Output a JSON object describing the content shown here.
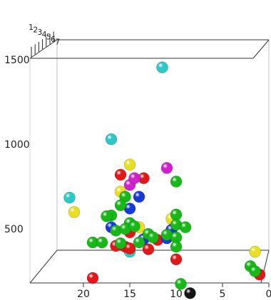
{
  "chart_data": {
    "type": "scatter",
    "projection": "3d",
    "title": "",
    "grid": false,
    "legend": "none",
    "x_axis": {
      "ticks": [
        "20",
        "15",
        "10",
        "5",
        "0"
      ],
      "range": [
        0,
        23
      ]
    },
    "y_axis": {
      "ticks": [
        "500",
        "1000",
        "1500"
      ],
      "range": [
        230,
        1550
      ]
    },
    "depth_axis": {
      "ticks": [
        "1",
        "2",
        "3",
        "4",
        "5",
        "6",
        "7"
      ]
    },
    "point_colors": {
      "cyan": "#2ec8c8",
      "yellow": "#e8e020",
      "red": "#e01818",
      "green": "#18b818",
      "blue": "#1838d8",
      "magenta": "#d020d0",
      "black": "#151515"
    },
    "points": [
      {
        "x": 11.5,
        "y": 1455,
        "color": "cyan"
      },
      {
        "x": 17.0,
        "y": 1030,
        "color": "cyan"
      },
      {
        "x": 21.5,
        "y": 685,
        "color": "cyan"
      },
      {
        "x": 15.0,
        "y": 365,
        "color": "cyan"
      },
      {
        "x": 21.0,
        "y": 600,
        "color": "yellow"
      },
      {
        "x": 15.0,
        "y": 880,
        "color": "yellow"
      },
      {
        "x": 16.0,
        "y": 720,
        "color": "yellow"
      },
      {
        "x": 14.0,
        "y": 510,
        "color": "yellow"
      },
      {
        "x": 10.5,
        "y": 560,
        "color": "yellow"
      },
      {
        "x": 1.5,
        "y": 365,
        "color": "yellow"
      },
      {
        "x": 16.0,
        "y": 820,
        "color": "red"
      },
      {
        "x": 13.5,
        "y": 800,
        "color": "red"
      },
      {
        "x": 15.0,
        "y": 480,
        "color": "red"
      },
      {
        "x": 16.5,
        "y": 400,
        "color": "red"
      },
      {
        "x": 15.5,
        "y": 395,
        "color": "red"
      },
      {
        "x": 13.0,
        "y": 380,
        "color": "red"
      },
      {
        "x": 15.0,
        "y": 385,
        "color": "red"
      },
      {
        "x": 12.0,
        "y": 435,
        "color": "red"
      },
      {
        "x": 10.0,
        "y": 320,
        "color": "red"
      },
      {
        "x": 19.0,
        "y": 210,
        "color": "red"
      },
      {
        "x": 1.0,
        "y": 230,
        "color": "red"
      },
      {
        "x": 11.0,
        "y": 860,
        "color": "magenta"
      },
      {
        "x": 15.0,
        "y": 760,
        "color": "magenta"
      },
      {
        "x": 14.5,
        "y": 800,
        "color": "magenta"
      },
      {
        "x": 14.0,
        "y": 690,
        "color": "blue"
      },
      {
        "x": 15.0,
        "y": 620,
        "color": "blue"
      },
      {
        "x": 17.0,
        "y": 510,
        "color": "blue"
      },
      {
        "x": 13.5,
        "y": 440,
        "color": "blue"
      },
      {
        "x": 10.5,
        "y": 495,
        "color": "blue"
      },
      {
        "x": 11.0,
        "y": 445,
        "color": "blue"
      },
      {
        "x": 10.0,
        "y": 780,
        "color": "green"
      },
      {
        "x": 15.5,
        "y": 690,
        "color": "green"
      },
      {
        "x": 16.0,
        "y": 640,
        "color": "green"
      },
      {
        "x": 17.0,
        "y": 580,
        "color": "green"
      },
      {
        "x": 17.5,
        "y": 575,
        "color": "green"
      },
      {
        "x": 15.0,
        "y": 535,
        "color": "green"
      },
      {
        "x": 16.5,
        "y": 490,
        "color": "green"
      },
      {
        "x": 15.5,
        "y": 500,
        "color": "green"
      },
      {
        "x": 14.5,
        "y": 515,
        "color": "green"
      },
      {
        "x": 19.0,
        "y": 420,
        "color": "green"
      },
      {
        "x": 18.0,
        "y": 420,
        "color": "green"
      },
      {
        "x": 16.0,
        "y": 415,
        "color": "green"
      },
      {
        "x": 14.0,
        "y": 420,
        "color": "green"
      },
      {
        "x": 13.0,
        "y": 470,
        "color": "green"
      },
      {
        "x": 12.5,
        "y": 450,
        "color": "green"
      },
      {
        "x": 11.0,
        "y": 465,
        "color": "green"
      },
      {
        "x": 10.0,
        "y": 585,
        "color": "green"
      },
      {
        "x": 10.0,
        "y": 525,
        "color": "green"
      },
      {
        "x": 9.0,
        "y": 510,
        "color": "green"
      },
      {
        "x": 10.0,
        "y": 450,
        "color": "green"
      },
      {
        "x": 10.0,
        "y": 395,
        "color": "green"
      },
      {
        "x": 9.5,
        "y": 175,
        "color": "green"
      },
      {
        "x": 2.0,
        "y": 280,
        "color": "green"
      },
      {
        "x": 1.5,
        "y": 250,
        "color": "green"
      },
      {
        "x": 8.5,
        "y": 120,
        "color": "black"
      }
    ]
  }
}
